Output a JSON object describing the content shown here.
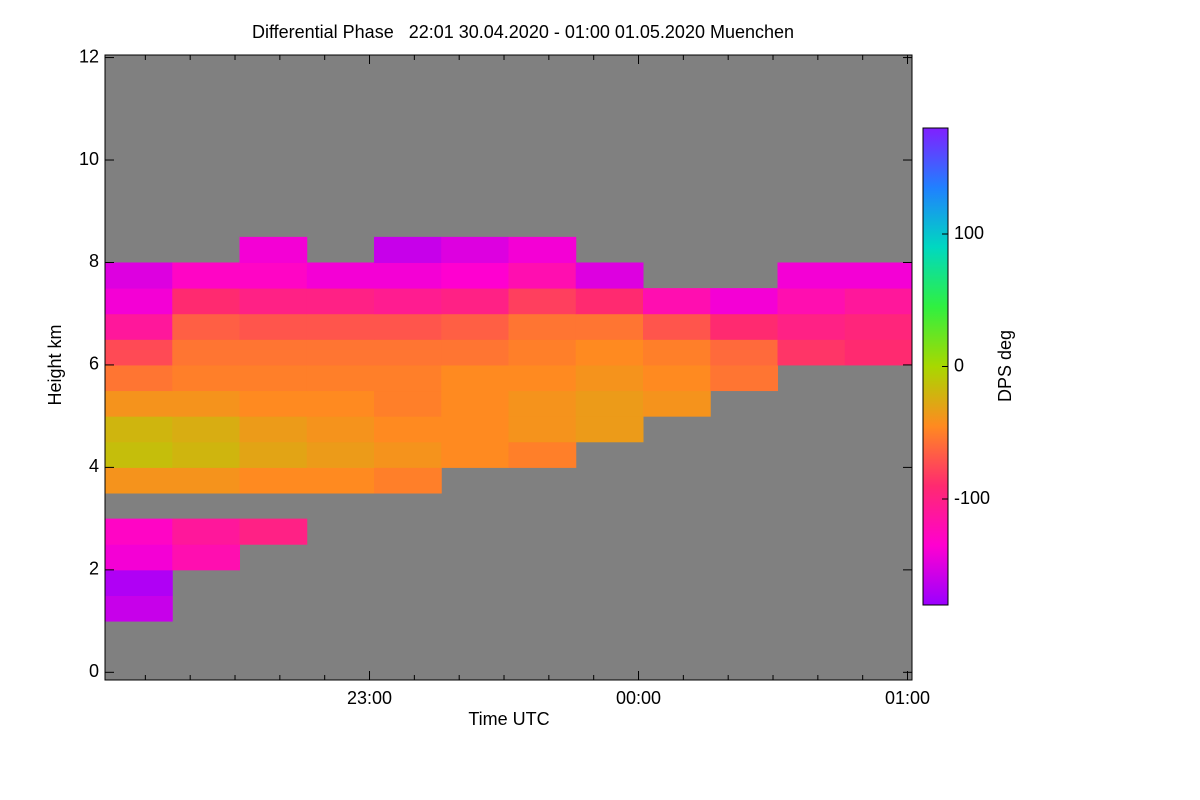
{
  "chart_data": {
    "type": "heatmap",
    "title": "Differential Phase   22:01 30.04.2020 - 01:00 01.05.2020 Muenchen",
    "xlabel": "Time UTC",
    "ylabel": "Height km",
    "colorbar_label": "DPS deg",
    "xlim": [
      1,
      181
    ],
    "xticks": [
      {
        "value": 60,
        "label": "23:00"
      },
      {
        "value": 120,
        "label": "00:00"
      },
      {
        "value": 180,
        "label": "01:00"
      }
    ],
    "xminor_ticks": [
      10,
      20,
      30,
      40,
      50,
      70,
      80,
      90,
      100,
      110,
      130,
      140,
      150,
      160,
      170
    ],
    "ylim": [
      -0.15,
      12.05
    ],
    "yticks": [
      0,
      2,
      4,
      6,
      8,
      10,
      12
    ],
    "clim": [
      -180,
      180
    ],
    "cticks": [
      -100,
      0,
      100
    ],
    "colormap": [
      "#9a00ff",
      "#ff00d0",
      "#ff2a70",
      "#ff8a20",
      "#a8d800",
      "#30f040",
      "#00d8c0",
      "#2080ff",
      "#8020ff"
    ],
    "missing_color": "#808080",
    "xbins": [
      1,
      16,
      31,
      46,
      61,
      76,
      91,
      106,
      121,
      136,
      151,
      166,
      181
    ],
    "ybins": [
      0,
      0.5,
      1,
      1.5,
      2,
      2.5,
      3,
      3.5,
      4,
      4.5,
      5,
      5.5,
      6,
      6.5,
      7,
      7.5,
      8,
      8.5,
      9,
      9.5,
      10,
      10.5,
      11,
      11.5,
      12
    ],
    "values": [
      [
        null,
        null,
        null,
        null,
        null,
        null,
        null,
        null,
        null,
        null,
        null,
        null
      ],
      [
        null,
        null,
        null,
        null,
        null,
        null,
        null,
        null,
        null,
        null,
        null,
        null
      ],
      [
        -160,
        null,
        null,
        null,
        null,
        null,
        null,
        null,
        null,
        null,
        null,
        null
      ],
      [
        -170,
        null,
        null,
        null,
        null,
        null,
        null,
        null,
        null,
        null,
        null,
        null
      ],
      [
        -140,
        -120,
        null,
        null,
        null,
        null,
        null,
        null,
        null,
        null,
        null,
        null
      ],
      [
        -130,
        -110,
        -100,
        null,
        null,
        null,
        null,
        null,
        null,
        null,
        null,
        null
      ],
      [
        null,
        null,
        null,
        null,
        null,
        null,
        null,
        null,
        null,
        null,
        null,
        null
      ],
      [
        -40,
        -40,
        -45,
        -45,
        -50,
        null,
        null,
        null,
        null,
        null,
        null,
        null
      ],
      [
        -15,
        -20,
        -30,
        -35,
        -40,
        -45,
        -50,
        null,
        null,
        null,
        null,
        null
      ],
      [
        -20,
        -25,
        -35,
        -40,
        -45,
        -45,
        -40,
        -35,
        null,
        null,
        null,
        null
      ],
      [
        -40,
        -40,
        -45,
        -45,
        -50,
        -45,
        -40,
        -35,
        -40,
        null,
        null,
        null
      ],
      [
        -55,
        -50,
        -50,
        -50,
        -50,
        -45,
        -45,
        -40,
        -45,
        -55,
        null,
        null
      ],
      [
        -75,
        -55,
        -55,
        -55,
        -55,
        -55,
        -50,
        -45,
        -50,
        -60,
        -85,
        -90
      ],
      [
        -110,
        -65,
        -70,
        -70,
        -70,
        -65,
        -55,
        -55,
        -70,
        -90,
        -100,
        -95
      ],
      [
        -140,
        -90,
        -100,
        -100,
        -105,
        -100,
        -80,
        -90,
        -120,
        -140,
        -120,
        -110
      ],
      [
        -150,
        -130,
        -130,
        -140,
        -140,
        -135,
        -120,
        -150,
        null,
        null,
        -140,
        -140
      ],
      [
        null,
        null,
        -140,
        null,
        -160,
        -150,
        -140,
        null,
        null,
        null,
        null,
        null
      ],
      [
        null,
        null,
        null,
        null,
        null,
        null,
        null,
        null,
        null,
        null,
        null,
        null
      ],
      [
        null,
        null,
        null,
        null,
        null,
        null,
        null,
        null,
        null,
        null,
        null,
        null
      ],
      [
        null,
        null,
        null,
        null,
        null,
        null,
        null,
        null,
        null,
        null,
        null,
        null
      ],
      [
        null,
        null,
        null,
        null,
        null,
        null,
        null,
        null,
        null,
        null,
        null,
        null
      ],
      [
        null,
        null,
        null,
        null,
        null,
        null,
        null,
        null,
        null,
        null,
        null,
        null
      ],
      [
        null,
        null,
        null,
        null,
        null,
        null,
        null,
        null,
        null,
        null,
        null,
        null
      ],
      [
        null,
        null,
        null,
        null,
        null,
        null,
        null,
        null,
        null,
        null,
        null,
        null
      ]
    ]
  }
}
